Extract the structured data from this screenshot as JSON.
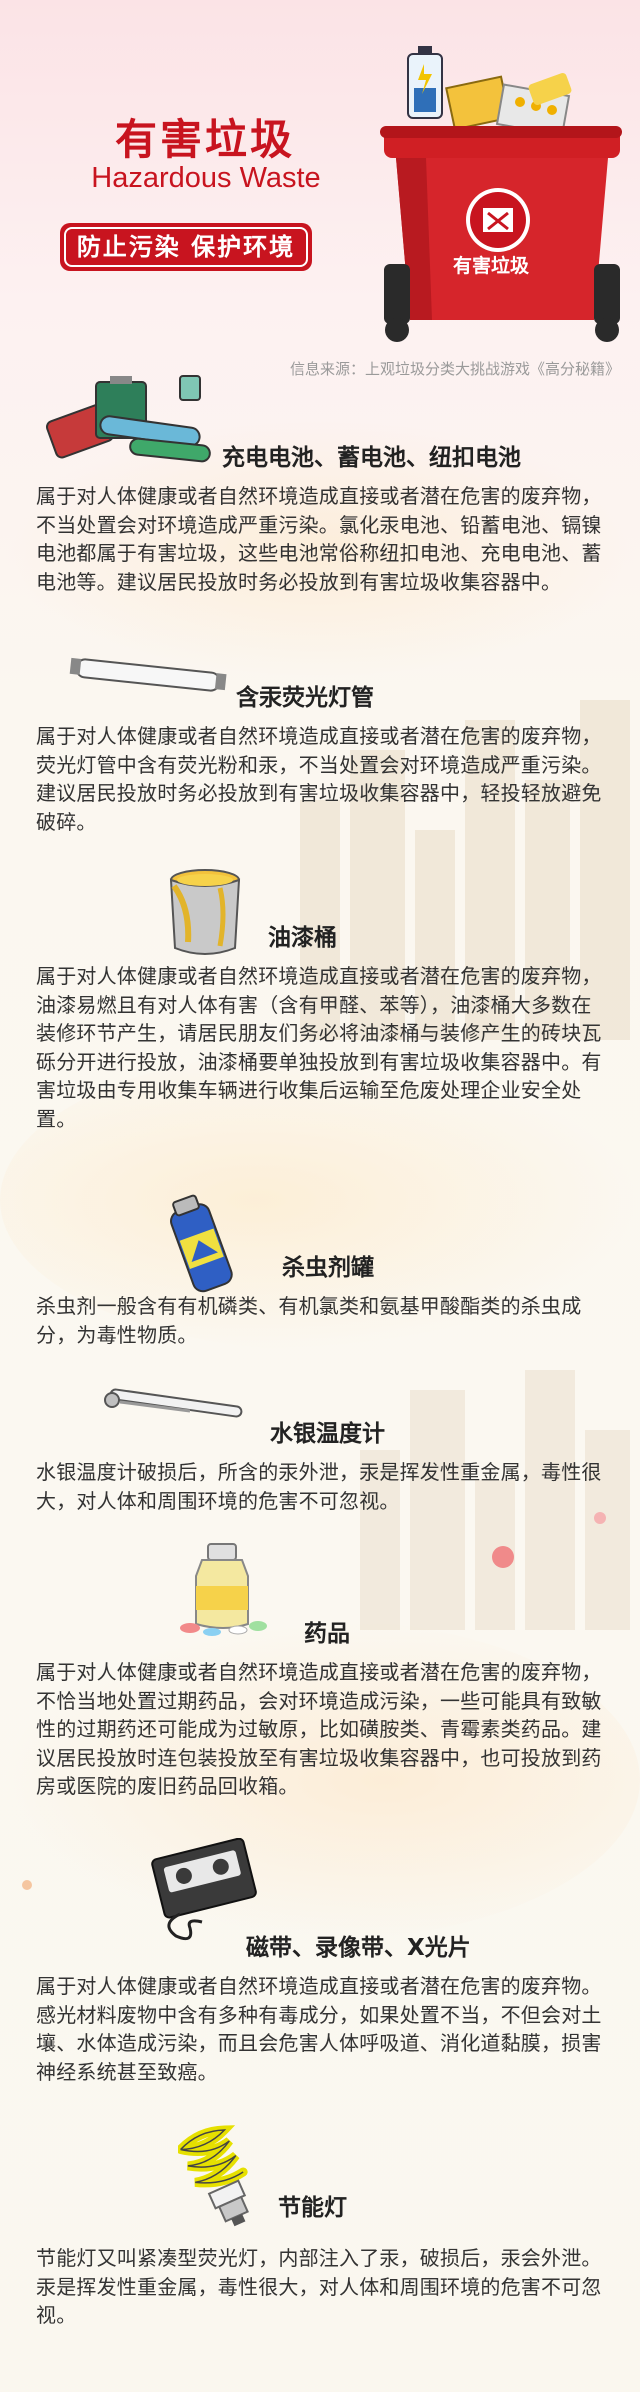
{
  "header": {
    "title_cn": "有害垃圾",
    "title_en": "Hazardous Waste",
    "slogan": "防止污染 保护环境",
    "bin_label": "有害垃圾",
    "source": "信息来源：上观垃圾分类大挑战游戏《高分秘籍》"
  },
  "colors": {
    "brand_red": "#c8141f",
    "text": "#333333",
    "background": "#fbf7f0"
  },
  "items": [
    {
      "title": "充电电池、蓄电池、纽扣电池",
      "icon": "battery-icon",
      "body": "属于对人体健康或者自然环境造成直接或者潜在危害的废弃物，不当处置会对环境造成严重污染。氯化汞电池、铅蓄电池、镉镍电池都属于有害垃圾，这些电池常俗称纽扣电池、充电电池、蓄电池等。建议居民投放时务必投放到有害垃圾收集容器中。"
    },
    {
      "title": "含汞荧光灯管",
      "icon": "fluorescent-tube-icon",
      "body": "属于对人体健康或者自然环境造成直接或者潜在危害的废弃物，荧光灯管中含有荧光粉和汞，不当处置会对环境造成严重污染。建议居民投放时务必投放到有害垃圾收集容器中，轻投轻放避免破碎。"
    },
    {
      "title": "油漆桶",
      "icon": "paint-bucket-icon",
      "body": "属于对人体健康或者自然环境造成直接或者潜在危害的废弃物，油漆易燃且有对人体有害（含有甲醛、苯等），油漆桶大多数在装修环节产生，请居民朋友们务必将油漆桶与装修产生的砖块瓦砾分开进行投放，油漆桶要单独投放到有害垃圾收集容器中。有害垃圾由专用收集车辆进行收集后运输至危废处理企业安全处置。"
    },
    {
      "title": "杀虫剂罐",
      "icon": "spray-can-icon",
      "body": "杀虫剂一般含有有机磷类、有机氯类和氨基甲酸酯类的杀虫成分，为毒性物质。"
    },
    {
      "title": "水银温度计",
      "icon": "thermometer-icon",
      "body": "水银温度计破损后，所含的汞外泄，汞是挥发性重金属，毒性很大，对人体和周围环境的危害不可忽视。"
    },
    {
      "title": "药品",
      "icon": "medicine-icon",
      "body": "属于对人体健康或者自然环境造成直接或者潜在危害的废弃物，不恰当地处置过期药品，会对环境造成污染，一些可能具有致敏性的过期药还可能成为过敏原，比如磺胺类、青霉素类药品。建议居民投放时连包装投放至有害垃圾收集容器中，也可投放到药房或医院的废旧药品回收箱。"
    },
    {
      "title": "磁带、录像带、X光片",
      "icon": "cassette-icon",
      "body": "属于对人体健康或者自然环境造成直接或者潜在危害的废弃物。感光材料废物中含有多种有毒成分，如果处置不当，不但会对土壤、水体造成污染，而且会危害人体呼吸道、消化道黏膜，损害神经系统甚至致癌。"
    },
    {
      "title": "节能灯",
      "icon": "energy-saving-lamp-icon",
      "body": "节能灯又叫紧凑型荧光灯，内部注入了汞，破损后，汞会外泄。汞是挥发性重金属，毒性很大，对人体和周围环境的危害不可忽视。"
    }
  ]
}
